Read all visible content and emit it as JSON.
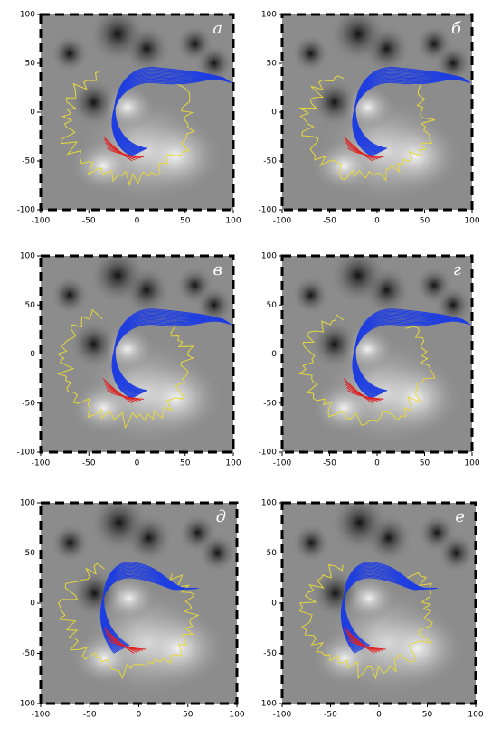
{
  "chart_data": [
    {
      "type": "magnetogram",
      "label": "а",
      "xlim": [
        -100,
        100
      ],
      "ylim": [
        -100,
        100
      ],
      "xticks": [
        -100,
        -50,
        0,
        50,
        100
      ],
      "yticks": [
        -100,
        -50,
        0,
        50,
        100
      ]
    },
    {
      "type": "magnetogram",
      "label": "б",
      "xlim": [
        -100,
        100
      ],
      "ylim": [
        -100,
        100
      ],
      "xticks": [
        -100,
        -50,
        0,
        50,
        100
      ],
      "yticks": [
        -100,
        -50,
        0,
        50,
        100
      ]
    },
    {
      "type": "magnetogram",
      "label": "в",
      "xlim": [
        -100,
        100
      ],
      "ylim": [
        -100,
        100
      ],
      "xticks": [
        -100,
        -50,
        0,
        50,
        100
      ],
      "yticks": [
        -100,
        -50,
        0,
        50,
        100
      ]
    },
    {
      "type": "magnetogram",
      "label": "г",
      "xlim": [
        -100,
        100
      ],
      "ylim": [
        -100,
        100
      ],
      "xticks": [
        -100,
        -50,
        0,
        50,
        100
      ],
      "yticks": [
        -100,
        -50,
        0,
        50,
        100
      ]
    },
    {
      "type": "magnetogram",
      "label": "д",
      "xlim": [
        -100,
        100
      ],
      "ylim": [
        -100,
        100
      ],
      "xticks": [
        -100,
        -50,
        0,
        50,
        100
      ],
      "yticks": [
        -100,
        -50,
        0,
        50,
        100
      ]
    },
    {
      "type": "magnetogram",
      "label": "е",
      "xlim": [
        -100,
        100
      ],
      "ylim": [
        -100,
        100
      ],
      "xticks": [
        -100,
        -50,
        0,
        50,
        100
      ],
      "yticks": [
        -100,
        -50,
        0,
        50,
        100
      ]
    }
  ]
}
